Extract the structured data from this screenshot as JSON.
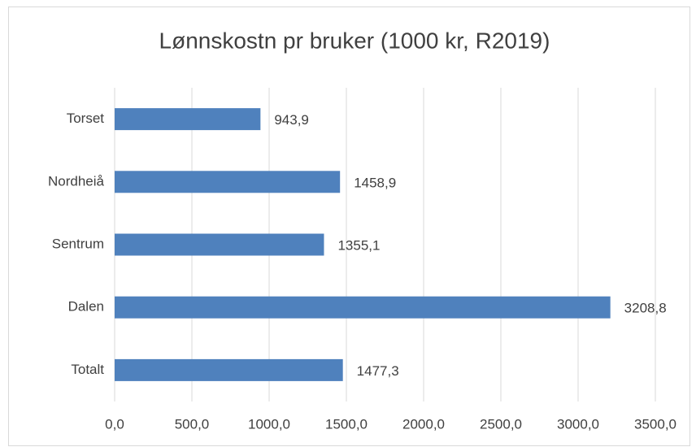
{
  "chart_data": {
    "type": "bar",
    "orientation": "horizontal",
    "title": "Lønnskostn pr bruker (1000 kr, R2019)",
    "categories": [
      "Torset",
      "Nordheiå",
      "Sentrum",
      "Dalen",
      "Totalt"
    ],
    "values": [
      943.9,
      1458.9,
      1355.1,
      3208.8,
      1477.3
    ],
    "value_labels": [
      "943,9",
      "1458,9",
      "1355,1",
      "3208,8",
      "1477,3"
    ],
    "color": "#4f81bd",
    "xlim": [
      0,
      3500
    ],
    "xticks": [
      {
        "value": 0,
        "label": "0,0"
      },
      {
        "value": 500,
        "label": "500,0"
      },
      {
        "value": 1000,
        "label": "1000,0"
      },
      {
        "value": 1500,
        "label": "1500,0"
      },
      {
        "value": 2000,
        "label": "2000,0"
      },
      {
        "value": 2500,
        "label": "2500,0"
      },
      {
        "value": 3000,
        "label": "3000,0"
      },
      {
        "value": 3500,
        "label": "3500,0"
      }
    ],
    "grid": true
  }
}
